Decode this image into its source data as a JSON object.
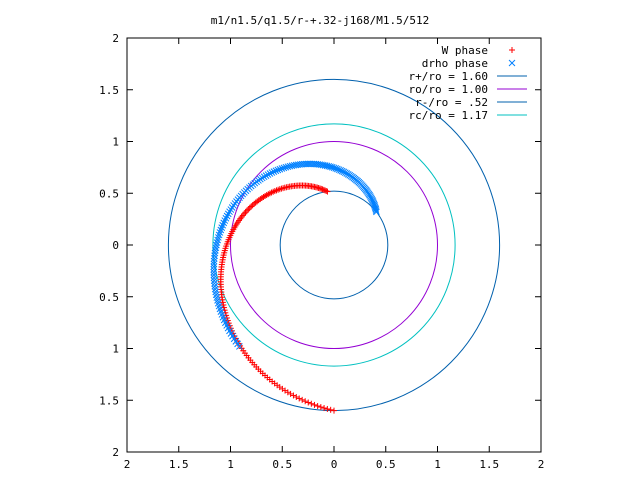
{
  "chart_data": {
    "type": "scatter",
    "title": "m1/n1.5/q1.5/r-+.32-j168/M1.5/512",
    "xlabel": "",
    "ylabel": "",
    "xlim": [
      2,
      -2
    ],
    "ylim": [
      -2,
      2
    ],
    "grid": false,
    "legend_placement": "top-right",
    "x_tick_labels": [
      "2",
      "1.5",
      "1",
      "0.5",
      "0",
      "0.5",
      "1",
      "1.5",
      "2"
    ],
    "y_tick_labels": [
      "2",
      "1.5",
      "1",
      "0.5",
      "0",
      "0.5",
      "1",
      "1.5",
      "2"
    ],
    "x_tick_values": [
      2,
      1.5,
      1,
      0.5,
      0,
      -0.5,
      -1,
      -1.5,
      -2
    ],
    "y_tick_values": [
      2,
      1.5,
      1,
      0.5,
      0,
      -0.5,
      -1,
      -1.5,
      -2
    ],
    "series": [
      {
        "name": "W phase",
        "marker": "+",
        "color": "#ff0000",
        "spiral": {
          "r_start": 1.6,
          "r_end": 0.52,
          "theta_start_deg": 270,
          "theta_end_deg": 97,
          "points": 150
        }
      },
      {
        "name": "drho phase",
        "marker": "x",
        "color": "#0080ff",
        "spiral": {
          "r_start": 1.34,
          "r_end": 0.52,
          "theta_start_deg": 227,
          "theta_end_deg": 38,
          "points": 150
        }
      }
    ],
    "circles": [
      {
        "name": "r+/ro = 1.60",
        "radius": 1.6,
        "color": "#0060ad"
      },
      {
        "name": "ro/ro = 1.00",
        "radius": 1.0,
        "color": "#9400d3"
      },
      {
        "name": "r-/ro = .52",
        "radius": 0.52,
        "color": "#0060ad"
      },
      {
        "name": "rc/ro = 1.17",
        "radius": 1.17,
        "color": "#00c0c0"
      }
    ]
  }
}
